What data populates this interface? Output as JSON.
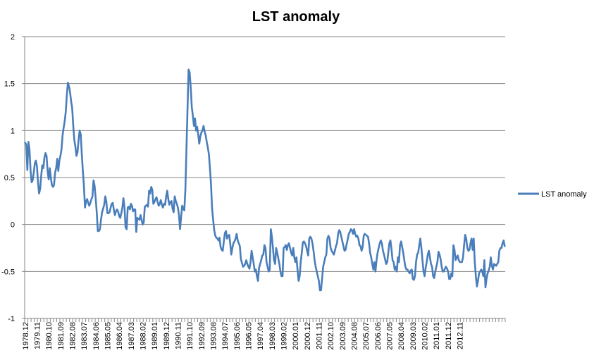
{
  "chart_data": {
    "type": "line",
    "title": "LST anomaly",
    "xlabel": "",
    "ylabel": "",
    "ylim": [
      -1,
      2
    ],
    "yticks": [
      -1,
      -0.5,
      0,
      0.5,
      1,
      1.5,
      2
    ],
    "ytick_labels": [
      "-1",
      "-0.5",
      "0",
      "0.5",
      "1",
      "1.5",
      "2"
    ],
    "grid": "horizontal",
    "legend": "right",
    "x_tick_labels": [
      "1978.12",
      "1979.11",
      "1980.10",
      "1981.09",
      "1982.08",
      "1983.07",
      "1984.06",
      "1985.05",
      "1986.04",
      "1987.03",
      "1988.02",
      "1989.01",
      "1989.12",
      "1990.11",
      "1991.10",
      "1992.09",
      "1993.08",
      "1994.07",
      "1995.06",
      "1996.05",
      "1997.04",
      "1998.03",
      "1999.02",
      "2000.01",
      "2000.12",
      "2001.11",
      "2002.10",
      "2003.09",
      "2004.08",
      "2005.07",
      "2006.06",
      "2007.05",
      "2008.04",
      "2009.03",
      "2010.02",
      "2011.01",
      "2011.12",
      "2012.11"
    ],
    "x_start": "1978.12",
    "x_step_months": 1,
    "colors": {
      "series": "#4a7ebb",
      "grid": "#868686",
      "axis": "#868686"
    },
    "series": [
      {
        "name": "LST anomaly",
        "values": [
          0.87,
          0.85,
          0.58,
          0.88,
          0.8,
          0.58,
          0.45,
          0.47,
          0.55,
          0.65,
          0.68,
          0.62,
          0.45,
          0.33,
          0.38,
          0.52,
          0.63,
          0.6,
          0.71,
          0.76,
          0.73,
          0.57,
          0.48,
          0.6,
          0.5,
          0.42,
          0.4,
          0.42,
          0.55,
          0.6,
          0.7,
          0.57,
          0.68,
          0.73,
          0.8,
          0.95,
          1.03,
          1.1,
          1.2,
          1.38,
          1.51,
          1.47,
          1.41,
          1.31,
          1.24,
          1.05,
          0.9,
          0.83,
          0.73,
          0.77,
          0.9,
          1.0,
          0.96,
          0.75,
          0.57,
          0.41,
          0.18,
          0.25,
          0.27,
          0.23,
          0.2,
          0.23,
          0.27,
          0.3,
          0.47,
          0.41,
          0.28,
          0.13,
          -0.07,
          -0.07,
          -0.05,
          0.05,
          0.13,
          0.17,
          0.21,
          0.3,
          0.24,
          0.12,
          0.12,
          0.13,
          0.18,
          0.22,
          0.23,
          0.16,
          0.1,
          0.14,
          0.16,
          0.14,
          0.09,
          0.07,
          0.12,
          0.18,
          0.28,
          0.18,
          -0.03,
          -0.05,
          0.18,
          0.19,
          0.16,
          0.22,
          0.2,
          0.14,
          0.16,
          0.16,
          -0.08,
          0.07,
          0.06,
          0.05,
          0.1,
          0.05,
          0.0,
          0.02,
          0.19,
          0.2,
          0.21,
          0.19,
          0.36,
          0.33,
          0.4,
          0.37,
          0.22,
          0.24,
          0.27,
          0.29,
          0.24,
          0.2,
          0.22,
          0.26,
          0.21,
          0.18,
          0.22,
          0.21,
          0.3,
          0.36,
          0.27,
          0.21,
          0.24,
          0.25,
          0.17,
          0.13,
          0.3,
          0.25,
          0.22,
          0.18,
          0.1,
          -0.05,
          0.08,
          0.2,
          0.17,
          0.15,
          0.37,
          0.8,
          1.23,
          1.65,
          1.62,
          1.46,
          1.25,
          1.16,
          1.05,
          1.13,
          1.0,
          1.04,
          0.96,
          0.86,
          0.94,
          0.98,
          1.0,
          1.05,
          0.99,
          0.95,
          0.88,
          0.82,
          0.75,
          0.6,
          0.43,
          0.17,
          0.05,
          -0.06,
          -0.12,
          -0.14,
          -0.15,
          -0.17,
          -0.14,
          -0.24,
          -0.27,
          -0.28,
          -0.18,
          -0.09,
          -0.07,
          -0.15,
          -0.12,
          -0.11,
          -0.2,
          -0.32,
          -0.25,
          -0.2,
          -0.18,
          -0.15,
          -0.1,
          -0.17,
          -0.2,
          -0.23,
          -0.37,
          -0.41,
          -0.45,
          -0.44,
          -0.42,
          -0.38,
          -0.42,
          -0.45,
          -0.47,
          -0.4,
          -0.28,
          -0.35,
          -0.42,
          -0.5,
          -0.48,
          -0.55,
          -0.6,
          -0.46,
          -0.42,
          -0.38,
          -0.33,
          -0.32,
          -0.22,
          -0.25,
          -0.4,
          -0.45,
          -0.5,
          -0.48,
          -0.05,
          -0.13,
          -0.25,
          -0.38,
          -0.42,
          -0.25,
          -0.3,
          -0.36,
          -0.42,
          -0.5,
          -0.55,
          -0.55,
          -0.25,
          -0.24,
          -0.22,
          -0.27,
          -0.22,
          -0.2,
          -0.25,
          -0.3,
          -0.33,
          -0.25,
          -0.35,
          -0.4,
          -0.35,
          -0.48,
          -0.6,
          -0.55,
          -0.4,
          -0.3,
          -0.19,
          -0.18,
          -0.2,
          -0.23,
          -0.28,
          -0.33,
          -0.15,
          -0.13,
          -0.15,
          -0.2,
          -0.28,
          -0.38,
          -0.45,
          -0.5,
          -0.55,
          -0.6,
          -0.7,
          -0.7,
          -0.58,
          -0.45,
          -0.4,
          -0.35,
          -0.32,
          -0.15,
          -0.12,
          -0.15,
          -0.25,
          -0.28,
          -0.3,
          -0.32,
          -0.28,
          -0.23,
          -0.2,
          -0.1,
          -0.06,
          -0.08,
          -0.13,
          -0.18,
          -0.23,
          -0.28,
          -0.27,
          -0.21,
          -0.16,
          -0.1,
          -0.08,
          -0.05,
          -0.06,
          -0.1,
          -0.05,
          -0.1,
          -0.13,
          -0.12,
          -0.15,
          -0.22,
          -0.23,
          -0.28,
          -0.24,
          -0.12,
          -0.1,
          -0.11,
          -0.12,
          -0.13,
          -0.2,
          -0.3,
          -0.35,
          -0.42,
          -0.48,
          -0.4,
          -0.5,
          -0.38,
          -0.3,
          -0.25,
          -0.2,
          -0.17,
          -0.2,
          -0.28,
          -0.32,
          -0.37,
          -0.42,
          -0.4,
          -0.3,
          -0.2,
          -0.17,
          -0.26,
          -0.38,
          -0.4,
          -0.48,
          -0.45,
          -0.5,
          -0.35,
          -0.4,
          -0.22,
          -0.18,
          -0.24,
          -0.3,
          -0.38,
          -0.45,
          -0.48,
          -0.48,
          -0.5,
          -0.52,
          -0.49,
          -0.48,
          -0.58,
          -0.59,
          -0.55,
          -0.4,
          -0.32,
          -0.3,
          -0.22,
          -0.15,
          -0.25,
          -0.38,
          -0.5,
          -0.55,
          -0.46,
          -0.4,
          -0.32,
          -0.28,
          -0.35,
          -0.42,
          -0.45,
          -0.55,
          -0.57,
          -0.5,
          -0.45,
          -0.4,
          -0.29,
          -0.32,
          -0.37,
          -0.45,
          -0.5,
          -0.5,
          -0.47,
          -0.45,
          -0.47,
          -0.5,
          -0.58,
          -0.58,
          -0.52,
          -0.55,
          -0.22,
          -0.27,
          -0.38,
          -0.35,
          -0.33,
          -0.38,
          -0.4,
          -0.4,
          -0.4,
          -0.35,
          -0.22,
          -0.11,
          -0.15,
          -0.25,
          -0.28,
          -0.27,
          -0.2,
          -0.15,
          -0.27,
          -0.15,
          -0.4,
          -0.55,
          -0.66,
          -0.6,
          -0.52,
          -0.5,
          -0.48,
          -0.5,
          -0.55,
          -0.38,
          -0.67,
          -0.58,
          -0.52,
          -0.49,
          -0.45,
          -0.35,
          -0.44,
          -0.48,
          -0.42,
          -0.43,
          -0.44,
          -0.42,
          -0.4,
          -0.28,
          -0.25,
          -0.25,
          -0.2,
          -0.17,
          -0.23
        ]
      }
    ]
  }
}
